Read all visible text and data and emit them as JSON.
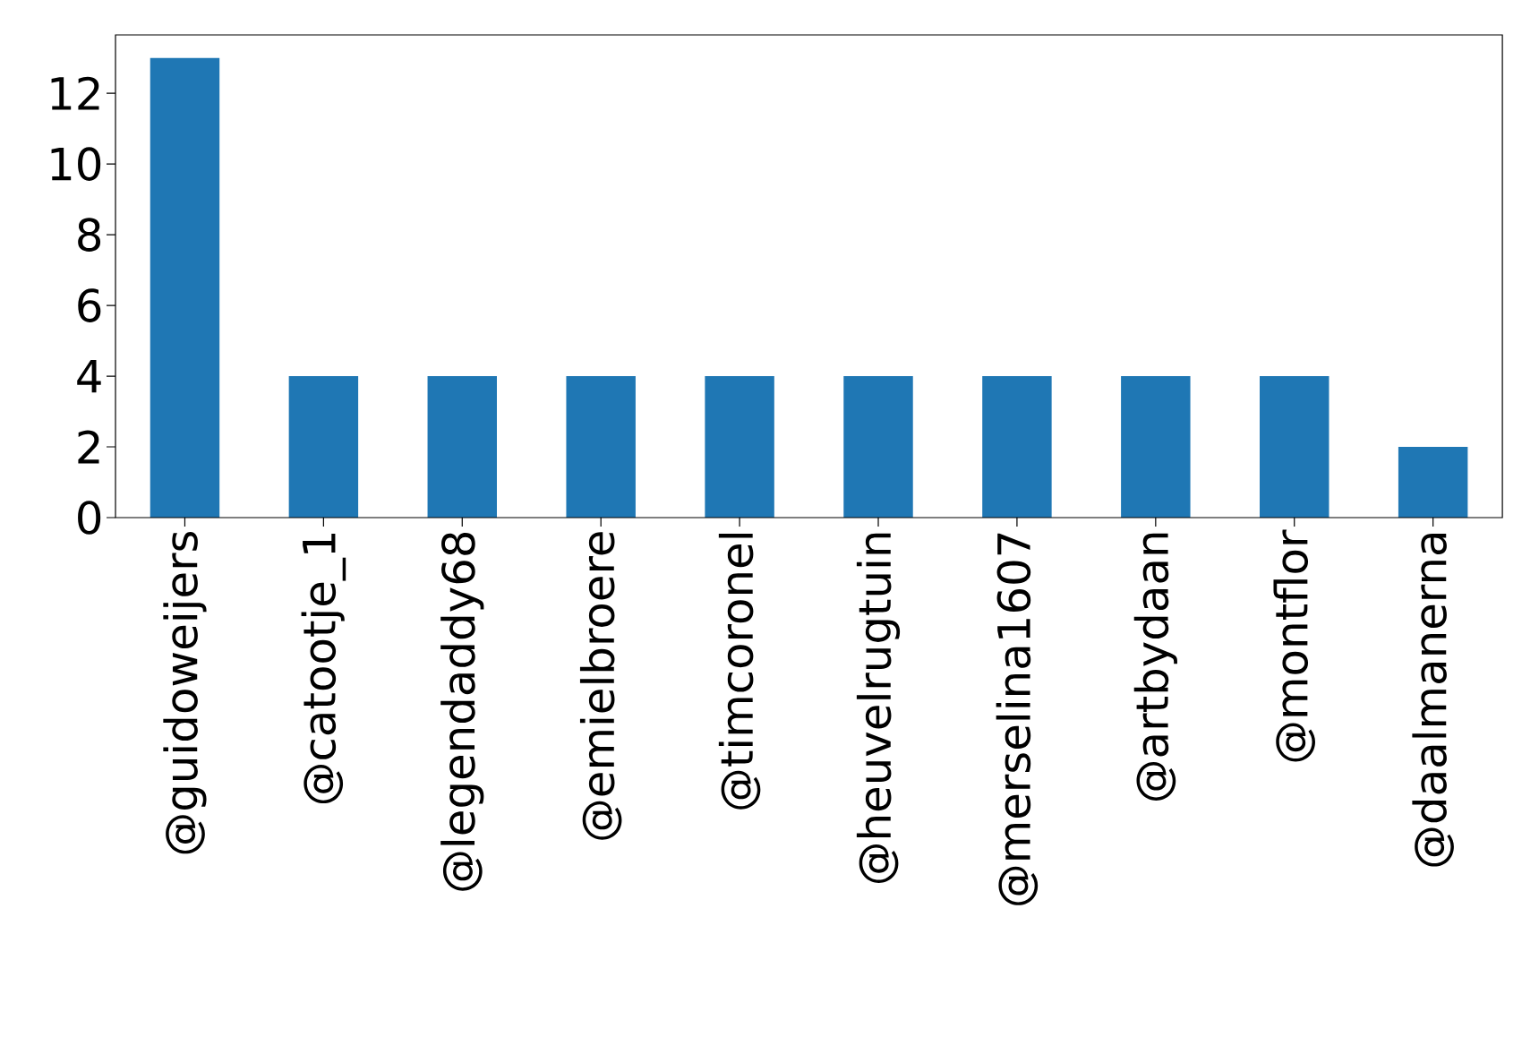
{
  "chart_data": {
    "type": "bar",
    "categories": [
      "@guidoweijers",
      "@catootje_1",
      "@legendaddy68",
      "@emielbroere",
      "@timcoronel",
      "@heuvelrugtuin",
      "@merselina1607",
      "@artbydaan",
      "@montflor",
      "@daalmanerna"
    ],
    "values": [
      13,
      4,
      4,
      4,
      4,
      4,
      4,
      4,
      4,
      2
    ],
    "color": "#1f77b4",
    "ylim": [
      0,
      13.65
    ],
    "yticks": [
      0,
      2,
      4,
      6,
      8,
      10,
      12
    ]
  }
}
